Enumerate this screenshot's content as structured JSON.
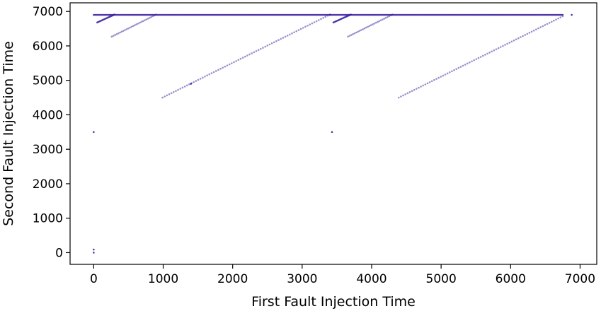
{
  "chart_data": {
    "type": "scatter",
    "title": "",
    "xlabel": "First Fault Injection Time",
    "ylabel": "Second Fault Injection Time",
    "xlim": [
      -340,
      7240
    ],
    "ylim": [
      -340,
      7250
    ],
    "xticks": [
      0,
      1000,
      2000,
      3000,
      4000,
      5000,
      6000,
      7000
    ],
    "yticks": [
      0,
      1000,
      2000,
      3000,
      4000,
      5000,
      6000,
      7000
    ],
    "xtick_labels": [
      "0",
      "1000",
      "2000",
      "3000",
      "4000",
      "5000",
      "6000",
      "7000"
    ],
    "ytick_labels": [
      "0",
      "1000",
      "2000",
      "3000",
      "4000",
      "5000",
      "6000",
      "7000"
    ],
    "grid": false,
    "legend": "none",
    "marker_color": "#3a1f9e",
    "point_groups": [
      {
        "kind": "segment",
        "x": [
          0,
          3400
        ],
        "y": [
          6900,
          6900
        ],
        "step": 18,
        "alpha": 0.85
      },
      {
        "kind": "segment",
        "x": [
          3400,
          6750
        ],
        "y": [
          6900,
          6900
        ],
        "step": 18,
        "alpha": 0.85
      },
      {
        "kind": "segment",
        "x": [
          50,
          300
        ],
        "y": [
          6680,
          6910
        ],
        "step": 14,
        "alpha": 0.8
      },
      {
        "kind": "segment",
        "x": [
          260,
          900
        ],
        "y": [
          6270,
          6910
        ],
        "step": 24,
        "alpha": 0.5
      },
      {
        "kind": "segment",
        "x": [
          990,
          3400
        ],
        "y": [
          4500,
          6910
        ],
        "step": 32,
        "alpha": 0.5
      },
      {
        "kind": "segment",
        "x": [
          3450,
          3700
        ],
        "y": [
          6680,
          6910
        ],
        "step": 14,
        "alpha": 0.8
      },
      {
        "kind": "segment",
        "x": [
          3660,
          4300
        ],
        "y": [
          6270,
          6910
        ],
        "step": 24,
        "alpha": 0.5
      },
      {
        "kind": "segment",
        "x": [
          4390,
          6750
        ],
        "y": [
          4500,
          6860
        ],
        "step": 32,
        "alpha": 0.5
      },
      {
        "kind": "points",
        "x": [
          0,
          0,
          0,
          3430,
          1400,
          6880
        ],
        "y": [
          0,
          90,
          3500,
          3500,
          4900,
          6900
        ],
        "alpha": 0.9
      }
    ]
  }
}
